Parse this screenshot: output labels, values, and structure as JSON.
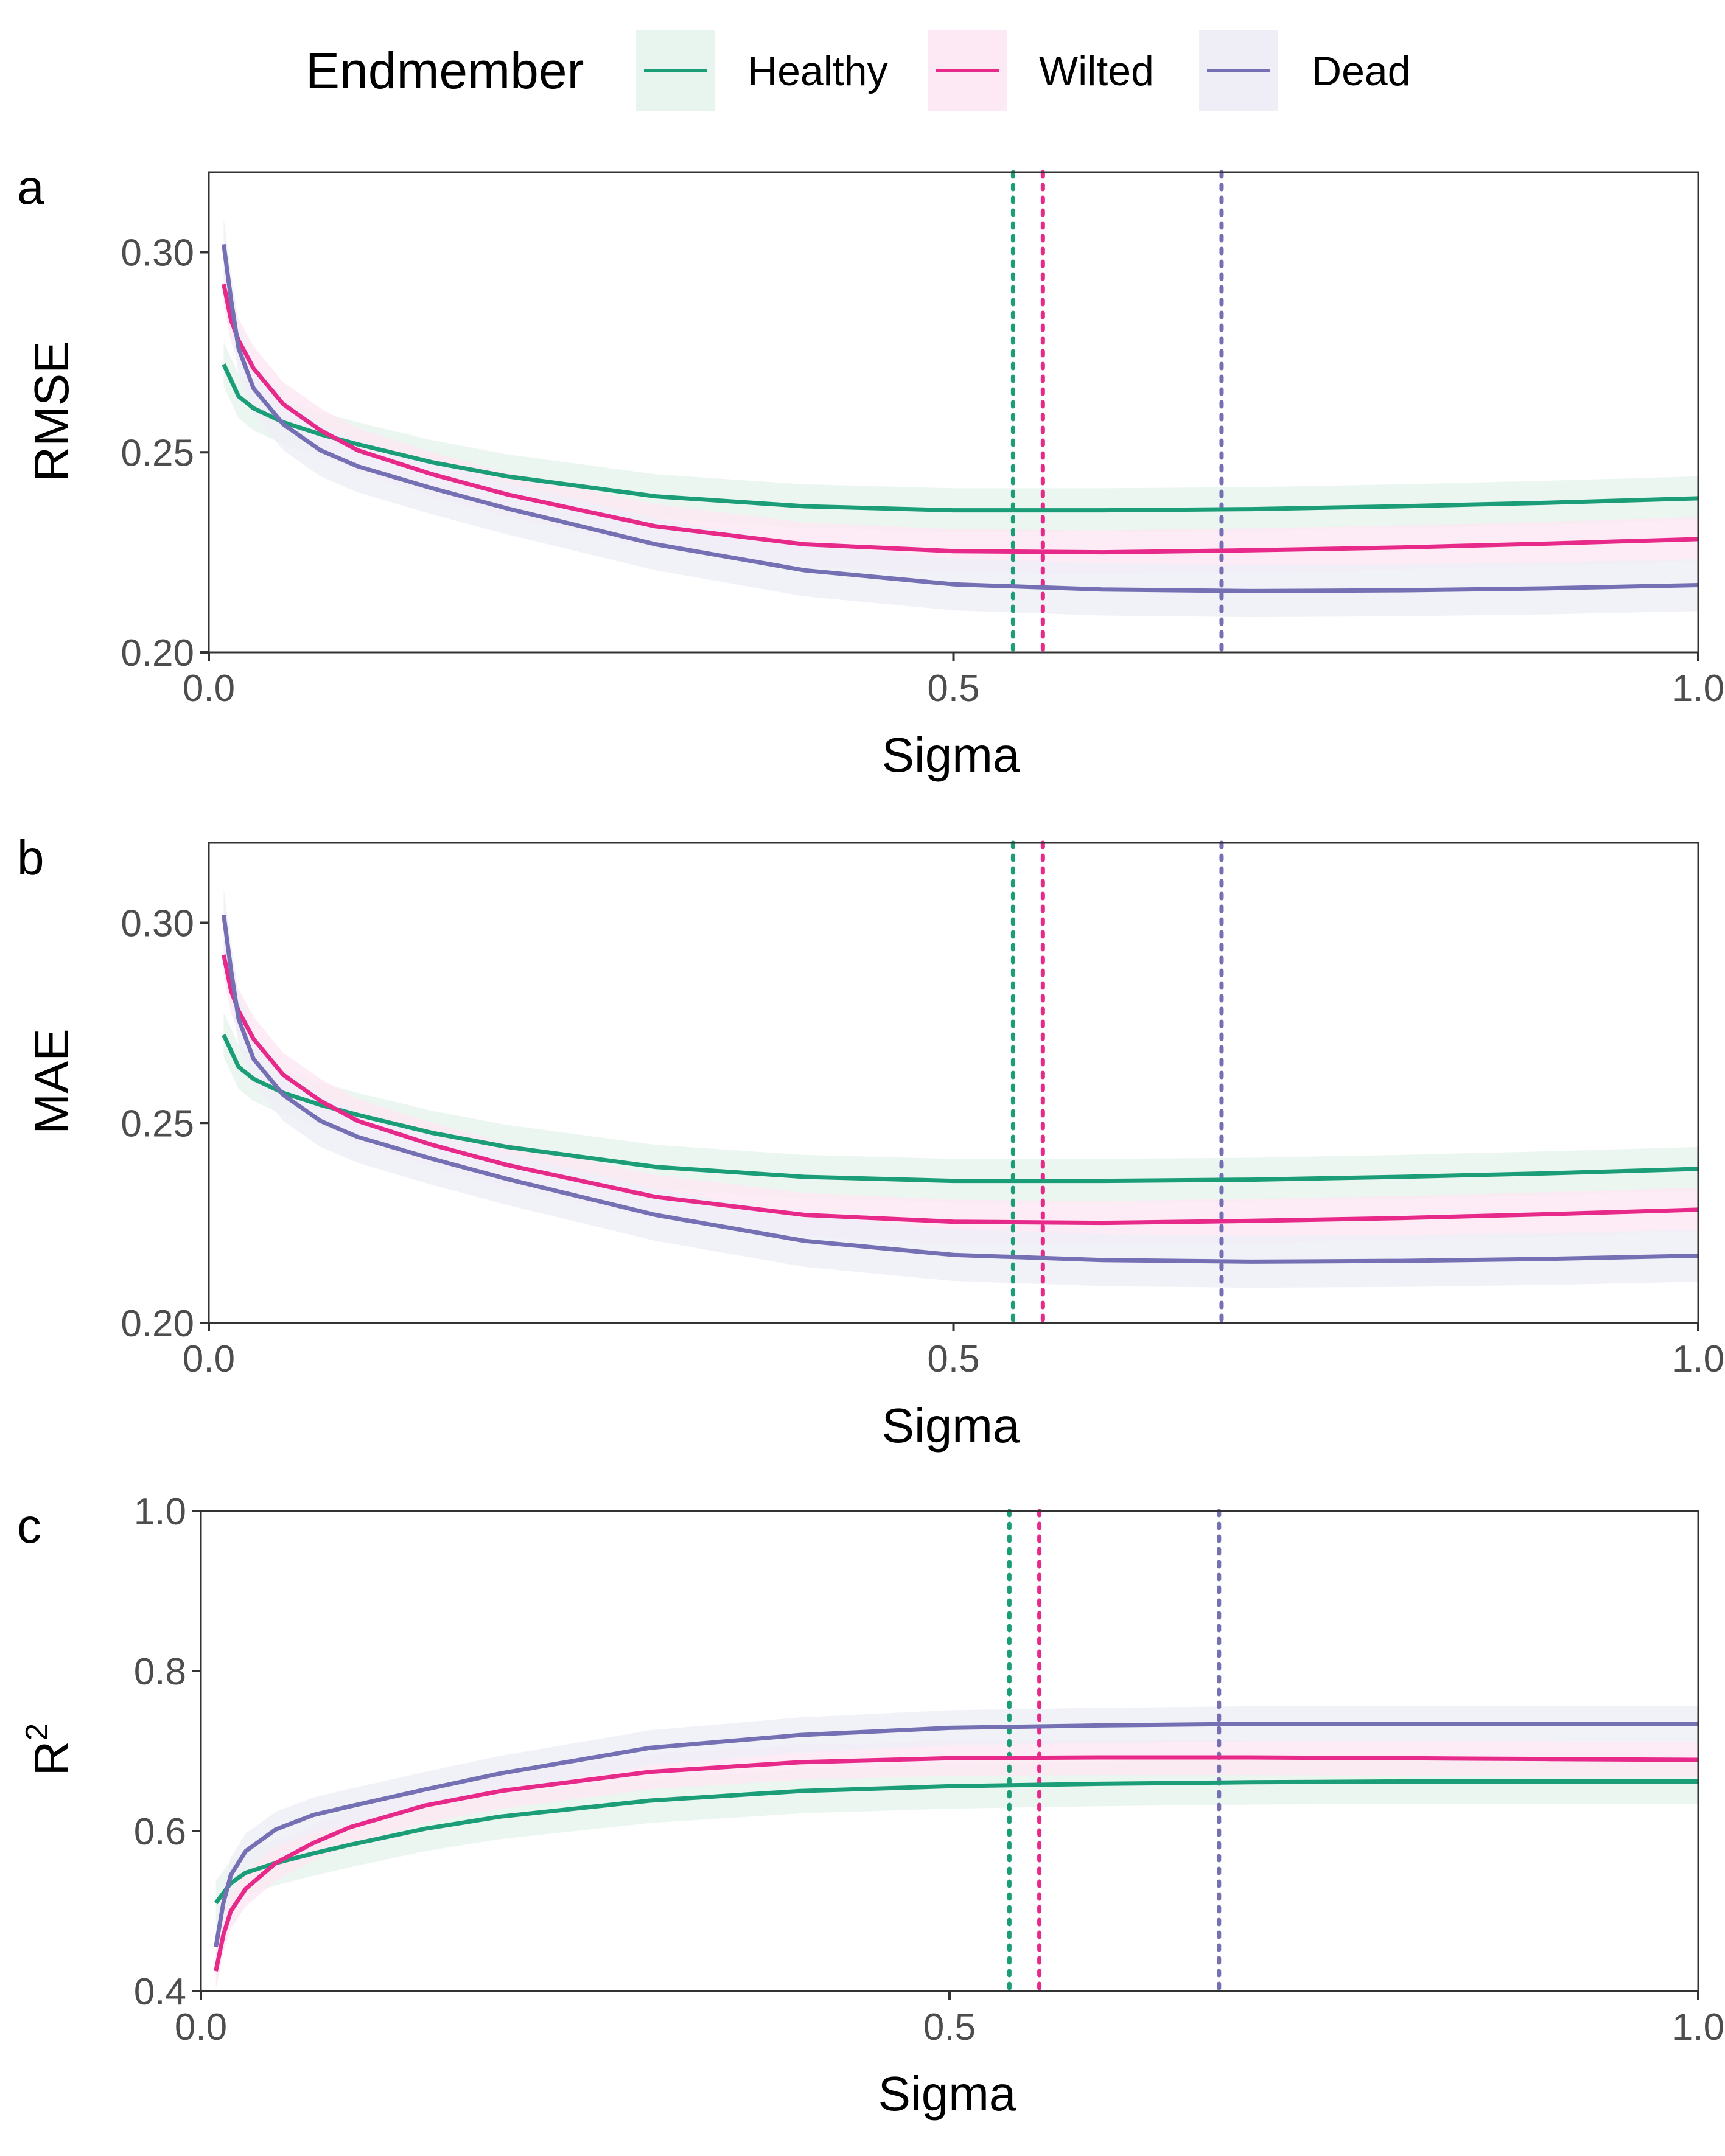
{
  "legend": {
    "title": "Endmember",
    "items": [
      {
        "label": "Healthy",
        "color": "#1b9e77",
        "fill": "#e8f5ef"
      },
      {
        "label": "Wilted",
        "color": "#e7298a",
        "fill": "#fde9f3"
      },
      {
        "label": "Dead",
        "color": "#7570b3",
        "fill": "#efeef7"
      }
    ]
  },
  "chart_data": [
    {
      "type": "line",
      "panel": "a",
      "xlabel": "Sigma",
      "ylabel": "RMSE",
      "xlim": [
        0,
        1
      ],
      "ylim": [
        0.2,
        0.32
      ],
      "xticks": [
        0,
        0.5,
        1
      ],
      "xtick_labels": [
        "0.0",
        "0.5",
        "1.0"
      ],
      "yticks": [
        0.2,
        0.25,
        0.3
      ],
      "ytick_labels": [
        "0.20",
        "0.25",
        "0.30"
      ],
      "grid": false,
      "legend": "top",
      "optimal_sigma": {
        "Healthy": 0.54,
        "Wilted": 0.56,
        "Dead": 0.68
      },
      "series": [
        {
          "name": "Healthy",
          "x": [
            0.01,
            0.02,
            0.03,
            0.05,
            0.075,
            0.1,
            0.15,
            0.2,
            0.3,
            0.4,
            0.5,
            0.6,
            0.7,
            0.8,
            0.9,
            1.0
          ],
          "y": [
            0.272,
            0.264,
            0.261,
            0.2575,
            0.2545,
            0.252,
            0.2475,
            0.244,
            0.239,
            0.2365,
            0.2355,
            0.2355,
            0.2358,
            0.2365,
            0.2374,
            0.2385
          ],
          "band": 0.0055
        },
        {
          "name": "Wilted",
          "x": [
            0.01,
            0.015,
            0.02,
            0.03,
            0.05,
            0.075,
            0.1,
            0.15,
            0.2,
            0.3,
            0.4,
            0.5,
            0.6,
            0.7,
            0.8,
            0.9,
            1.0
          ],
          "y": [
            0.292,
            0.283,
            0.278,
            0.271,
            0.262,
            0.2555,
            0.2505,
            0.2445,
            0.2395,
            0.2315,
            0.227,
            0.2253,
            0.225,
            0.2255,
            0.2262,
            0.2272,
            0.2283
          ],
          "band": 0.0055
        },
        {
          "name": "Dead",
          "x": [
            0.01,
            0.015,
            0.02,
            0.03,
            0.05,
            0.075,
            0.1,
            0.15,
            0.2,
            0.3,
            0.4,
            0.5,
            0.6,
            0.7,
            0.8,
            0.9,
            1.0
          ],
          "y": [
            0.302,
            0.288,
            0.276,
            0.266,
            0.257,
            0.2505,
            0.2465,
            0.241,
            0.236,
            0.227,
            0.2205,
            0.217,
            0.2157,
            0.2153,
            0.2155,
            0.216,
            0.2168
          ],
          "band": 0.0065
        }
      ]
    },
    {
      "type": "line",
      "panel": "b",
      "xlabel": "Sigma",
      "ylabel": "MAE",
      "xlim": [
        0,
        1
      ],
      "ylim": [
        0.2,
        0.32
      ],
      "xticks": [
        0,
        0.5,
        1
      ],
      "xtick_labels": [
        "0.0",
        "0.5",
        "1.0"
      ],
      "yticks": [
        0.2,
        0.25,
        0.3
      ],
      "ytick_labels": [
        "0.20",
        "0.25",
        "0.30"
      ],
      "grid": false,
      "optimal_sigma": {
        "Healthy": 0.54,
        "Wilted": 0.56,
        "Dead": 0.68
      },
      "series": [
        {
          "name": "Healthy",
          "x": [
            0.01,
            0.02,
            0.03,
            0.05,
            0.075,
            0.1,
            0.15,
            0.2,
            0.3,
            0.4,
            0.5,
            0.6,
            0.7,
            0.8,
            0.9,
            1.0
          ],
          "y": [
            0.272,
            0.264,
            0.261,
            0.2575,
            0.2545,
            0.252,
            0.2475,
            0.244,
            0.239,
            0.2365,
            0.2355,
            0.2355,
            0.2358,
            0.2365,
            0.2374,
            0.2385
          ],
          "band": 0.0055
        },
        {
          "name": "Wilted",
          "x": [
            0.01,
            0.015,
            0.02,
            0.03,
            0.05,
            0.075,
            0.1,
            0.15,
            0.2,
            0.3,
            0.4,
            0.5,
            0.6,
            0.7,
            0.8,
            0.9,
            1.0
          ],
          "y": [
            0.292,
            0.283,
            0.278,
            0.271,
            0.262,
            0.2555,
            0.2505,
            0.2445,
            0.2395,
            0.2315,
            0.227,
            0.2253,
            0.225,
            0.2255,
            0.2262,
            0.2272,
            0.2283
          ],
          "band": 0.0055
        },
        {
          "name": "Dead",
          "x": [
            0.01,
            0.015,
            0.02,
            0.03,
            0.05,
            0.075,
            0.1,
            0.15,
            0.2,
            0.3,
            0.4,
            0.5,
            0.6,
            0.7,
            0.8,
            0.9,
            1.0
          ],
          "y": [
            0.302,
            0.288,
            0.276,
            0.266,
            0.257,
            0.2505,
            0.2465,
            0.241,
            0.236,
            0.227,
            0.2205,
            0.217,
            0.2157,
            0.2153,
            0.2155,
            0.216,
            0.2168
          ],
          "band": 0.0065
        }
      ]
    },
    {
      "type": "line",
      "panel": "c",
      "xlabel": "Sigma",
      "ylabel": "R",
      "ylabel_sup": "2",
      "xlim": [
        0,
        1
      ],
      "ylim": [
        0.4,
        1.0
      ],
      "xticks": [
        0,
        0.5,
        1
      ],
      "xtick_labels": [
        "0.0",
        "0.5",
        "1.0"
      ],
      "yticks": [
        0.4,
        0.6,
        0.8,
        1.0
      ],
      "ytick_labels": [
        "0.4",
        "0.6",
        "0.8",
        "1.0"
      ],
      "grid": false,
      "optimal_sigma": {
        "Healthy": 0.54,
        "Wilted": 0.56,
        "Dead": 0.68
      },
      "series": [
        {
          "name": "Healthy",
          "x": [
            0.01,
            0.02,
            0.03,
            0.05,
            0.075,
            0.1,
            0.15,
            0.2,
            0.3,
            0.4,
            0.5,
            0.6,
            0.7,
            0.8,
            0.9,
            1.0
          ],
          "y": [
            0.51,
            0.535,
            0.548,
            0.56,
            0.572,
            0.583,
            0.603,
            0.618,
            0.638,
            0.65,
            0.656,
            0.659,
            0.661,
            0.662,
            0.662,
            0.662
          ],
          "band": 0.028
        },
        {
          "name": "Wilted",
          "x": [
            0.01,
            0.015,
            0.02,
            0.03,
            0.05,
            0.075,
            0.1,
            0.15,
            0.2,
            0.3,
            0.4,
            0.5,
            0.6,
            0.7,
            0.8,
            0.9,
            1.0
          ],
          "y": [
            0.425,
            0.47,
            0.5,
            0.528,
            0.56,
            0.585,
            0.605,
            0.632,
            0.65,
            0.674,
            0.686,
            0.691,
            0.692,
            0.692,
            0.691,
            0.69,
            0.689
          ],
          "band": 0.022
        },
        {
          "name": "Dead",
          "x": [
            0.01,
            0.015,
            0.02,
            0.03,
            0.05,
            0.075,
            0.1,
            0.15,
            0.2,
            0.3,
            0.4,
            0.5,
            0.6,
            0.7,
            0.8,
            0.9,
            1.0
          ],
          "y": [
            0.455,
            0.51,
            0.545,
            0.575,
            0.602,
            0.62,
            0.631,
            0.652,
            0.672,
            0.704,
            0.72,
            0.729,
            0.732,
            0.734,
            0.734,
            0.734,
            0.734
          ],
          "band": 0.022
        }
      ]
    }
  ]
}
